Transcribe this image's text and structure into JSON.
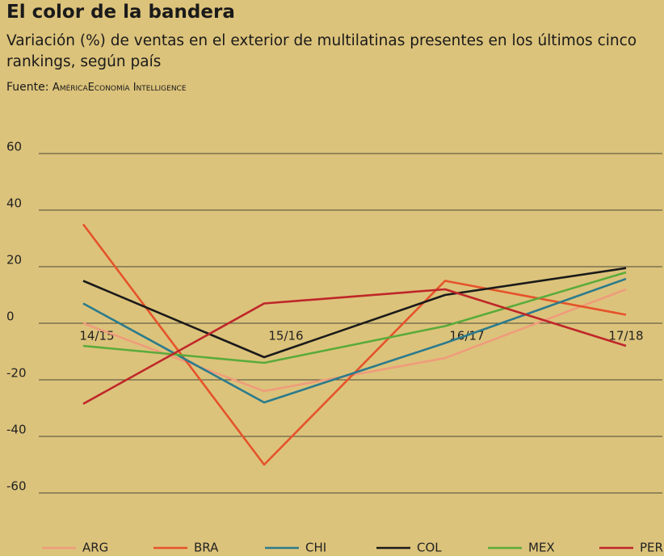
{
  "chart_data": {
    "type": "line",
    "title": "El color de la bandera",
    "subtitle": "Variación (%) de ventas en el exterior de multilatinas presentes en los últimos cinco rankings, según país",
    "source_label": "Fuente:",
    "source": "AméricaEconomía Intelligence",
    "categories": [
      "14/15",
      "15/16",
      "16/17",
      "17/18"
    ],
    "series": [
      {
        "name": "ARG",
        "color": "#ef9c7c",
        "values": [
          0,
          -24,
          -12.3,
          12
        ]
      },
      {
        "name": "BRA",
        "color": "#e5532b",
        "values": [
          35,
          -50,
          15,
          3
        ]
      },
      {
        "name": "CHI",
        "color": "#2b7b8c",
        "values": [
          7,
          -28,
          -7,
          15.7
        ]
      },
      {
        "name": "COL",
        "color": "#1a1a1a",
        "values": [
          15,
          -12,
          10,
          19.5
        ]
      },
      {
        "name": "MEX",
        "color": "#5aab3a",
        "values": [
          -8,
          -14,
          -1,
          18
        ]
      },
      {
        "name": "PER",
        "color": "#bf2629",
        "values": [
          -28.5,
          7,
          12,
          -8
        ]
      }
    ],
    "ylim": [
      -70,
      70
    ],
    "yticks": [
      -60,
      -40,
      -20,
      0,
      20,
      40,
      60
    ],
    "grid": true,
    "legend": "bottom"
  }
}
